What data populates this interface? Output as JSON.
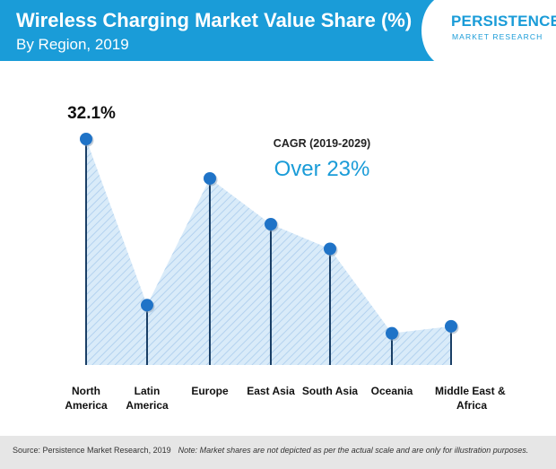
{
  "header": {
    "title": "Wireless Charging Market Value Share (%)",
    "subtitle": "By Region, 2019"
  },
  "logo": {
    "main": "PERSISTENCE",
    "sub": "MARKET RESEARCH"
  },
  "callout": {
    "label": "CAGR (2019-2029)",
    "value": "Over 23%"
  },
  "footer": {
    "source": "Source: Persistence Market Research, 2019",
    "note": "Note: Market shares are not depicted as per the actual scale and are only for illustration purposes."
  },
  "chart_data": {
    "type": "area",
    "title": "Wireless Charging Market Value Share (%)",
    "subtitle": "By Region, 2019",
    "categories": [
      "North America",
      "Latin America",
      "Europe",
      "East Asia",
      "South Asia",
      "Oceania",
      "Middle East & Africa"
    ],
    "category_lines": [
      [
        "North",
        "America"
      ],
      [
        "Latin",
        "America"
      ],
      [
        "Europe"
      ],
      [
        "East Asia"
      ],
      [
        "South Asia"
      ],
      [
        "Oceania"
      ],
      [
        "Middle East &",
        "Africa"
      ]
    ],
    "values": [
      32.1,
      8.5,
      26.5,
      20.0,
      16.5,
      4.5,
      5.5
    ],
    "data_labels": [
      "32.1%",
      "",
      "",
      "",
      "",
      "",
      ""
    ],
    "ylim": [
      0,
      34
    ],
    "grid": false,
    "colors": {
      "marker": "#1f73c7",
      "stem": "#1a3f66",
      "fill": "#d9ebf9",
      "hatch": "#b3d2ef",
      "accent": "#1a9cd8"
    }
  }
}
